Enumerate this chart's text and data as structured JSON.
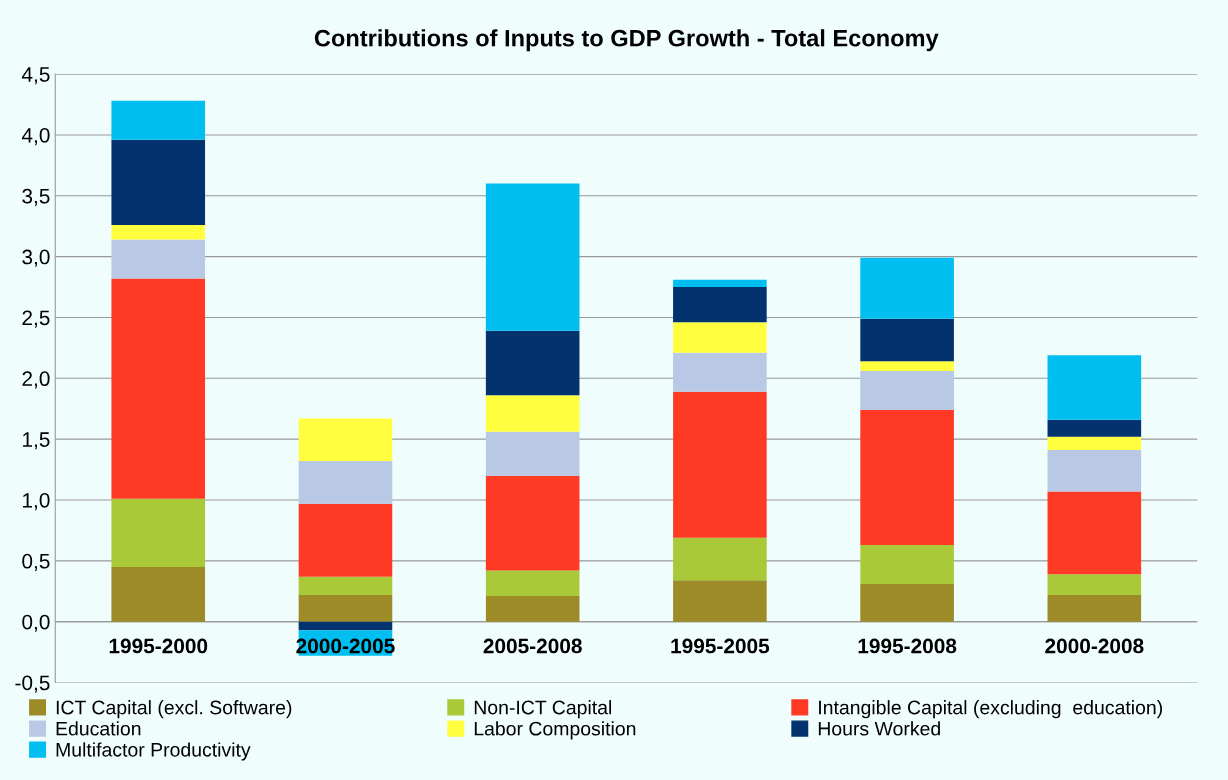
{
  "chart_data": {
    "type": "bar",
    "stacked": true,
    "title": "Contributions of Inputs to GDP Growth - Total Economy",
    "categories": [
      "1995-2000",
      "2000-2005",
      "2005-2008",
      "1995-2005",
      "1995-2008",
      "2000-2008"
    ],
    "series": [
      {
        "name": "ICT Capital (excl. Software)",
        "color": "#9c8b27",
        "values": [
          0.45,
          0.22,
          0.21,
          0.34,
          0.31,
          0.22
        ]
      },
      {
        "name": "Non-ICT Capital",
        "color": "#a9c938",
        "values": [
          0.56,
          0.15,
          0.21,
          0.35,
          0.32,
          0.17
        ]
      },
      {
        "name": "Intangible Capital (excluding  education)",
        "color": "#ff3a24",
        "values": [
          1.81,
          0.6,
          0.78,
          1.2,
          1.11,
          0.68
        ]
      },
      {
        "name": "Education",
        "color": "#b9c8e4",
        "values": [
          0.32,
          0.35,
          0.36,
          0.32,
          0.32,
          0.34
        ]
      },
      {
        "name": "Labor Composition",
        "color": "#ffff40",
        "values": [
          0.12,
          0.35,
          0.3,
          0.25,
          0.08,
          0.11
        ]
      },
      {
        "name": "Hours Worked",
        "color": "#02336e",
        "values": [
          0.7,
          -0.07,
          0.53,
          0.29,
          0.35,
          0.14
        ]
      },
      {
        "name": "Multifactor Productivity",
        "color": "#00bff0",
        "values": [
          0.32,
          -0.21,
          1.21,
          0.06,
          0.5,
          0.53
        ]
      }
    ],
    "ylim": [
      -0.5,
      4.5
    ],
    "yticks": [
      {
        "value": -0.5,
        "label": "-0,5"
      },
      {
        "value": 0,
        "label": "0,0"
      },
      {
        "value": 0.5,
        "label": "0,5"
      },
      {
        "value": 1,
        "label": "1,0"
      },
      {
        "value": 1.5,
        "label": "1,5"
      },
      {
        "value": 2,
        "label": "2,0"
      },
      {
        "value": 2.5,
        "label": "2,5"
      },
      {
        "value": 3,
        "label": "3,0"
      },
      {
        "value": 3.5,
        "label": "3,5"
      },
      {
        "value": 4,
        "label": "4,0"
      },
      {
        "value": 4.5,
        "label": "4,5"
      }
    ],
    "grid": "y",
    "legend": "bottom"
  }
}
